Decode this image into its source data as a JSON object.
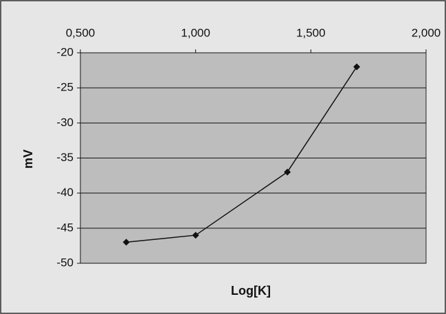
{
  "chart_data": {
    "type": "line",
    "x_label": "Log[K]",
    "y_label": "mV",
    "x": [
      0.699,
      1.0,
      1.398,
      1.699
    ],
    "series": [
      {
        "color": "#111111",
        "values": [
          -47,
          -46,
          -37,
          -22
        ]
      }
    ],
    "xlim": [
      0.5,
      2.0
    ],
    "xticks": [
      {
        "value": 0.5,
        "label": "0,500"
      },
      {
        "value": 1.0,
        "label": "1,000"
      },
      {
        "value": 1.5,
        "label": "1,500"
      },
      {
        "value": 2.0,
        "label": "2,000"
      }
    ],
    "ylim": [
      -50,
      -20
    ],
    "yticks": [
      -20,
      -25,
      -30,
      -35,
      -40,
      -45,
      -50
    ],
    "grid": true,
    "x_axis_position": "top"
  }
}
